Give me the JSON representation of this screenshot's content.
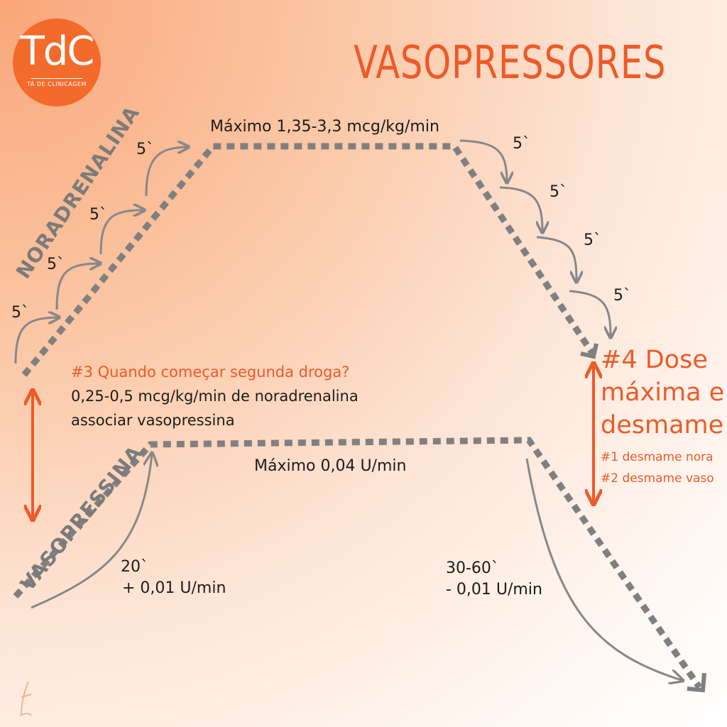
{
  "logo": {
    "main": "TdC",
    "sub": "TÁ DE CLINICAGEM"
  },
  "title": "VASOPRESSORES",
  "noradrenalina": {
    "label": "NORADRENALINA",
    "max_dose": "Máximo 1,35-3,3 mcg/kg/min",
    "step_up_labels": [
      "5`",
      "5`",
      "5`",
      "5`"
    ],
    "step_down_labels": [
      "5`",
      "5`",
      "5`",
      "5`"
    ]
  },
  "vasopressina": {
    "label": "VASOPRESSINA",
    "max_dose": "Máximo 0,04 U/min",
    "up_time": "20`",
    "up_dose": "+ 0,01 U/min",
    "down_time": "30-60`",
    "down_dose": "- 0,01 U/min"
  },
  "second_drug": {
    "question": "#3 Quando começar segunda droga?",
    "line1": "0,25-0,5 mcg/kg/min de noradrenalina",
    "line2": "associar vasopressina"
  },
  "weaning": {
    "line1": "#4 Dose",
    "line2": "máxima e",
    "line3": "desmame",
    "step1": "#1 desmame nora",
    "step2": "#2 desmame vaso"
  },
  "colors": {
    "accent": "#ee5a28",
    "gray": "#808080",
    "text": "#1c1c1c"
  },
  "icons": {
    "signature": "signature-mark-icon"
  }
}
